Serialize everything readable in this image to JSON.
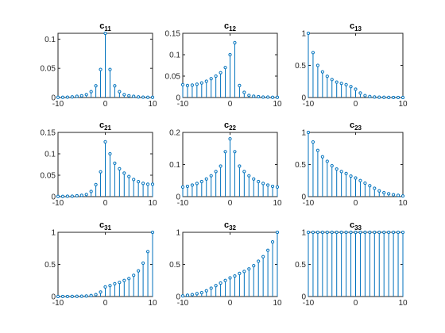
{
  "colors": {
    "stem": "#0072BD",
    "axis": "#262626",
    "background": "#ffffff"
  },
  "chart_data": [
    {
      "id": "c11",
      "type": "stem",
      "title_base": "c",
      "title_sub": "11",
      "xlim": [
        -10,
        10
      ],
      "ylim": [
        0,
        0.11
      ],
      "xticks": [
        -10,
        0,
        10
      ],
      "xtick_labels": [
        "-10",
        "0",
        "10"
      ],
      "yticks": [
        0,
        0.05,
        0.1
      ],
      "ytick_labels": [
        "0",
        "0.05",
        "0.1"
      ],
      "x": [
        -10,
        -9,
        -8,
        -7,
        -6,
        -5,
        -4,
        -3,
        -2,
        -1,
        0,
        1,
        2,
        3,
        4,
        5,
        6,
        7,
        8,
        9,
        10
      ],
      "y": [
        0.0003,
        0.0004,
        0.0006,
        0.001,
        0.002,
        0.003,
        0.005,
        0.01,
        0.02,
        0.048,
        0.11,
        0.048,
        0.02,
        0.01,
        0.005,
        0.003,
        0.002,
        0.001,
        0.0006,
        0.0004,
        0.0003
      ]
    },
    {
      "id": "c12",
      "type": "stem",
      "title_base": "c",
      "title_sub": "12",
      "xlim": [
        -10,
        10
      ],
      "ylim": [
        0,
        0.15
      ],
      "xticks": [
        -10,
        0,
        10
      ],
      "xtick_labels": [
        "-10",
        "0",
        "10"
      ],
      "yticks": [
        0,
        0.05,
        0.1,
        0.15
      ],
      "ytick_labels": [
        "0",
        "0.05",
        "0.1",
        "0.15"
      ],
      "x": [
        -10,
        -9,
        -8,
        -7,
        -6,
        -5,
        -4,
        -3,
        -2,
        -1,
        0,
        1,
        2,
        3,
        4,
        5,
        6,
        7,
        8,
        9,
        10
      ],
      "y": [
        0.03,
        0.028,
        0.029,
        0.031,
        0.034,
        0.038,
        0.044,
        0.05,
        0.058,
        0.07,
        0.1,
        0.128,
        0.028,
        0.012,
        0.005,
        0.003,
        0.002,
        0.001,
        0.001,
        0.0005,
        0.0005
      ]
    },
    {
      "id": "c13",
      "type": "stem",
      "title_base": "c",
      "title_sub": "13",
      "xlim": [
        -10,
        10
      ],
      "ylim": [
        0,
        1
      ],
      "xticks": [
        -10,
        0,
        10
      ],
      "xtick_labels": [
        "-10",
        "0",
        "10"
      ],
      "yticks": [
        0,
        0.5,
        1
      ],
      "ytick_labels": [
        "0",
        "0.5",
        "1"
      ],
      "x": [
        -10,
        -9,
        -8,
        -7,
        -6,
        -5,
        -4,
        -3,
        -2,
        -1,
        0,
        1,
        2,
        3,
        4,
        5,
        6,
        7,
        8,
        9,
        10
      ],
      "y": [
        1,
        0.7,
        0.5,
        0.4,
        0.33,
        0.28,
        0.24,
        0.22,
        0.2,
        0.17,
        0.13,
        0.07,
        0.03,
        0.015,
        0.008,
        0.005,
        0.003,
        0.002,
        0.001,
        0.001,
        0.0005
      ]
    },
    {
      "id": "c21",
      "type": "stem",
      "title_base": "c",
      "title_sub": "21",
      "xlim": [
        -10,
        10
      ],
      "ylim": [
        0,
        0.15
      ],
      "xticks": [
        -10,
        0,
        10
      ],
      "xtick_labels": [
        "-10",
        "0",
        "10"
      ],
      "yticks": [
        0,
        0.05,
        0.1,
        0.15
      ],
      "ytick_labels": [
        "0",
        "0.05",
        "0.1",
        "0.15"
      ],
      "x": [
        -10,
        -9,
        -8,
        -7,
        -6,
        -5,
        -4,
        -3,
        -2,
        -1,
        0,
        1,
        2,
        3,
        4,
        5,
        6,
        7,
        8,
        9,
        10
      ],
      "y": [
        0.0005,
        0.0005,
        0.001,
        0.001,
        0.002,
        0.003,
        0.005,
        0.012,
        0.028,
        0.058,
        0.128,
        0.1,
        0.078,
        0.065,
        0.055,
        0.047,
        0.04,
        0.035,
        0.031,
        0.029,
        0.029
      ]
    },
    {
      "id": "c22",
      "type": "stem",
      "title_base": "c",
      "title_sub": "22",
      "xlim": [
        -10,
        10
      ],
      "ylim": [
        0,
        0.2
      ],
      "xticks": [
        -10,
        0,
        10
      ],
      "xtick_labels": [
        "-10",
        "0",
        "10"
      ],
      "yticks": [
        0,
        0.1,
        0.2
      ],
      "ytick_labels": [
        "0",
        "0.1",
        "0.2"
      ],
      "x": [
        -10,
        -9,
        -8,
        -7,
        -6,
        -5,
        -4,
        -3,
        -2,
        -1,
        0,
        1,
        2,
        3,
        4,
        5,
        6,
        7,
        8,
        9,
        10
      ],
      "y": [
        0.03,
        0.032,
        0.036,
        0.041,
        0.047,
        0.055,
        0.065,
        0.078,
        0.095,
        0.14,
        0.18,
        0.14,
        0.095,
        0.078,
        0.065,
        0.055,
        0.047,
        0.041,
        0.036,
        0.032,
        0.03
      ]
    },
    {
      "id": "c23",
      "type": "stem",
      "title_base": "c",
      "title_sub": "23",
      "xlim": [
        -10,
        10
      ],
      "ylim": [
        0,
        1
      ],
      "xticks": [
        -10,
        0,
        10
      ],
      "xtick_labels": [
        "-10",
        "0",
        "10"
      ],
      "yticks": [
        0,
        0.5,
        1
      ],
      "ytick_labels": [
        "0",
        "0.5",
        "1"
      ],
      "x": [
        -10,
        -9,
        -8,
        -7,
        -6,
        -5,
        -4,
        -3,
        -2,
        -1,
        0,
        1,
        2,
        3,
        4,
        5,
        6,
        7,
        8,
        9,
        10
      ],
      "y": [
        1,
        0.85,
        0.72,
        0.62,
        0.55,
        0.48,
        0.43,
        0.39,
        0.36,
        0.32,
        0.29,
        0.25,
        0.21,
        0.17,
        0.13,
        0.09,
        0.06,
        0.045,
        0.03,
        0.02,
        0.01
      ]
    },
    {
      "id": "c31",
      "type": "stem",
      "title_base": "c",
      "title_sub": "31",
      "xlim": [
        -10,
        10
      ],
      "ylim": [
        0,
        1
      ],
      "xticks": [
        -10,
        0,
        10
      ],
      "xtick_labels": [
        "-10",
        "0",
        "10"
      ],
      "yticks": [
        0,
        0.5,
        1
      ],
      "ytick_labels": [
        "0",
        "0.5",
        "1"
      ],
      "x": [
        -10,
        -9,
        -8,
        -7,
        -6,
        -5,
        -4,
        -3,
        -2,
        -1,
        0,
        1,
        2,
        3,
        4,
        5,
        6,
        7,
        8,
        9,
        10
      ],
      "y": [
        0.0005,
        0.001,
        0.001,
        0.002,
        0.003,
        0.005,
        0.008,
        0.015,
        0.03,
        0.07,
        0.15,
        0.17,
        0.2,
        0.22,
        0.25,
        0.28,
        0.33,
        0.4,
        0.52,
        0.7,
        1
      ]
    },
    {
      "id": "c32",
      "type": "stem",
      "title_base": "c",
      "title_sub": "32",
      "xlim": [
        -10,
        10
      ],
      "ylim": [
        0,
        1
      ],
      "xticks": [
        -10,
        0,
        10
      ],
      "xtick_labels": [
        "-10",
        "0",
        "10"
      ],
      "yticks": [
        0,
        0.5,
        1
      ],
      "ytick_labels": [
        "0",
        "0.5",
        "1"
      ],
      "x": [
        -10,
        -9,
        -8,
        -7,
        -6,
        -5,
        -4,
        -3,
        -2,
        -1,
        0,
        1,
        2,
        3,
        4,
        5,
        6,
        7,
        8,
        9,
        10
      ],
      "y": [
        0.01,
        0.02,
        0.03,
        0.045,
        0.06,
        0.09,
        0.13,
        0.17,
        0.21,
        0.25,
        0.29,
        0.32,
        0.36,
        0.39,
        0.43,
        0.48,
        0.55,
        0.62,
        0.72,
        0.85,
        1
      ]
    },
    {
      "id": "c33",
      "type": "stem",
      "title_base": "c",
      "title_sub": "33",
      "xlim": [
        -10,
        10
      ],
      "ylim": [
        0,
        1
      ],
      "xticks": [
        -10,
        0,
        10
      ],
      "xtick_labels": [
        "-10",
        "0",
        "10"
      ],
      "yticks": [
        0,
        0.5,
        1
      ],
      "ytick_labels": [
        "0",
        "0.5",
        "1"
      ],
      "x": [
        -10,
        -9,
        -8,
        -7,
        -6,
        -5,
        -4,
        -3,
        -2,
        -1,
        0,
        1,
        2,
        3,
        4,
        5,
        6,
        7,
        8,
        9,
        10
      ],
      "y": [
        1,
        1,
        1,
        1,
        1,
        1,
        1,
        1,
        1,
        1,
        1,
        1,
        1,
        1,
        1,
        1,
        1,
        1,
        1,
        1,
        1
      ]
    }
  ]
}
